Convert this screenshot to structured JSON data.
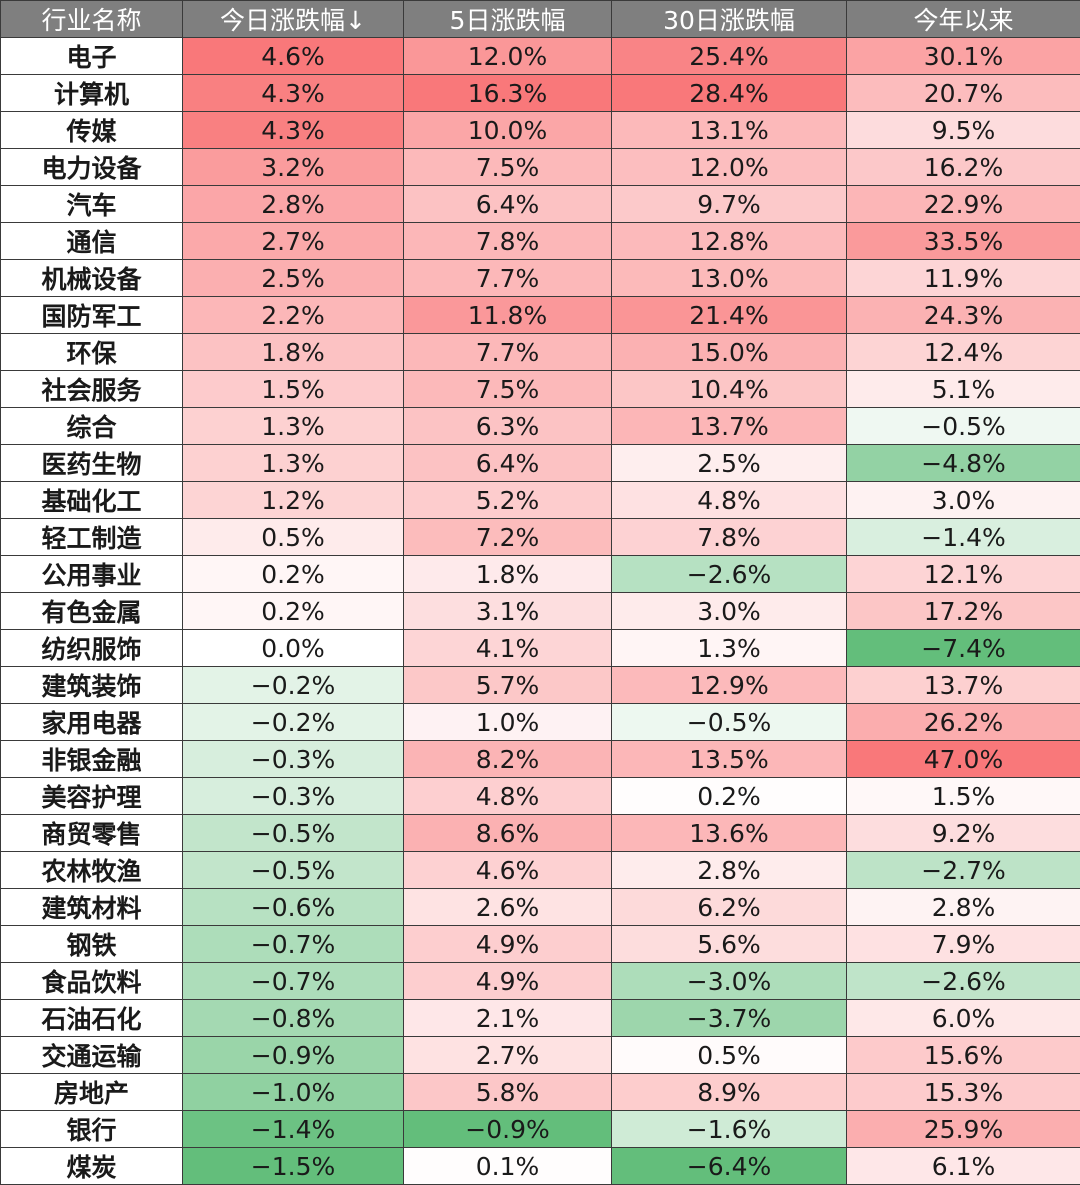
{
  "chart_data": {
    "type": "table",
    "columns": [
      "行业名称",
      "今日涨跌幅↓",
      "5日涨跌幅",
      "30日涨跌幅",
      "今年以来"
    ],
    "rows": [
      {
        "name": "电子",
        "values": [
          4.6,
          12.0,
          25.4,
          30.1
        ]
      },
      {
        "name": "计算机",
        "values": [
          4.3,
          16.3,
          28.4,
          20.7
        ]
      },
      {
        "name": "传媒",
        "values": [
          4.3,
          10.0,
          13.1,
          9.5
        ]
      },
      {
        "name": "电力设备",
        "values": [
          3.2,
          7.5,
          12.0,
          16.2
        ]
      },
      {
        "name": "汽车",
        "values": [
          2.8,
          6.4,
          9.7,
          22.9
        ]
      },
      {
        "name": "通信",
        "values": [
          2.7,
          7.8,
          12.8,
          33.5
        ]
      },
      {
        "name": "机械设备",
        "values": [
          2.5,
          7.7,
          13.0,
          11.9
        ]
      },
      {
        "name": "国防军工",
        "values": [
          2.2,
          11.8,
          21.4,
          24.3
        ]
      },
      {
        "name": "环保",
        "values": [
          1.8,
          7.7,
          15.0,
          12.4
        ]
      },
      {
        "name": "社会服务",
        "values": [
          1.5,
          7.5,
          10.4,
          5.1
        ]
      },
      {
        "name": "综合",
        "values": [
          1.3,
          6.3,
          13.7,
          -0.5
        ]
      },
      {
        "name": "医药生物",
        "values": [
          1.3,
          6.4,
          2.5,
          -4.8
        ]
      },
      {
        "name": "基础化工",
        "values": [
          1.2,
          5.2,
          4.8,
          3.0
        ]
      },
      {
        "name": "轻工制造",
        "values": [
          0.5,
          7.2,
          7.8,
          -1.4
        ]
      },
      {
        "name": "公用事业",
        "values": [
          0.2,
          1.8,
          -2.6,
          12.1
        ]
      },
      {
        "name": "有色金属",
        "values": [
          0.2,
          3.1,
          3.0,
          17.2
        ]
      },
      {
        "name": "纺织服饰",
        "values": [
          0.0,
          4.1,
          1.3,
          -7.4
        ]
      },
      {
        "name": "建筑装饰",
        "values": [
          -0.2,
          5.7,
          12.9,
          13.7
        ]
      },
      {
        "name": "家用电器",
        "values": [
          -0.2,
          1.0,
          -0.5,
          26.2
        ]
      },
      {
        "name": "非银金融",
        "values": [
          -0.3,
          8.2,
          13.5,
          47.0
        ]
      },
      {
        "name": "美容护理",
        "values": [
          -0.3,
          4.8,
          0.2,
          1.5
        ]
      },
      {
        "name": "商贸零售",
        "values": [
          -0.5,
          8.6,
          13.6,
          9.2
        ]
      },
      {
        "name": "农林牧渔",
        "values": [
          -0.5,
          4.6,
          2.8,
          -2.7
        ]
      },
      {
        "name": "建筑材料",
        "values": [
          -0.6,
          2.6,
          6.2,
          2.8
        ]
      },
      {
        "name": "钢铁",
        "values": [
          -0.7,
          4.9,
          5.6,
          7.9
        ]
      },
      {
        "name": "食品饮料",
        "values": [
          -0.7,
          4.9,
          -3.0,
          -2.6
        ]
      },
      {
        "name": "石油石化",
        "values": [
          -0.8,
          2.1,
          -3.7,
          6.0
        ]
      },
      {
        "name": "交通运输",
        "values": [
          -0.9,
          2.7,
          0.5,
          15.6
        ]
      },
      {
        "name": "房地产",
        "values": [
          -1.0,
          5.8,
          8.9,
          15.3
        ]
      },
      {
        "name": "银行",
        "values": [
          -1.4,
          -0.9,
          -1.6,
          25.9
        ]
      },
      {
        "name": "煤炭",
        "values": [
          -1.5,
          0.1,
          -6.4,
          6.1
        ]
      }
    ],
    "colors": {
      "header_bg": "#7f7f7f",
      "header_text": "#ffffff",
      "positive": "#f8696b",
      "negative": "#63be7b",
      "neutral": "#ffffff"
    }
  }
}
